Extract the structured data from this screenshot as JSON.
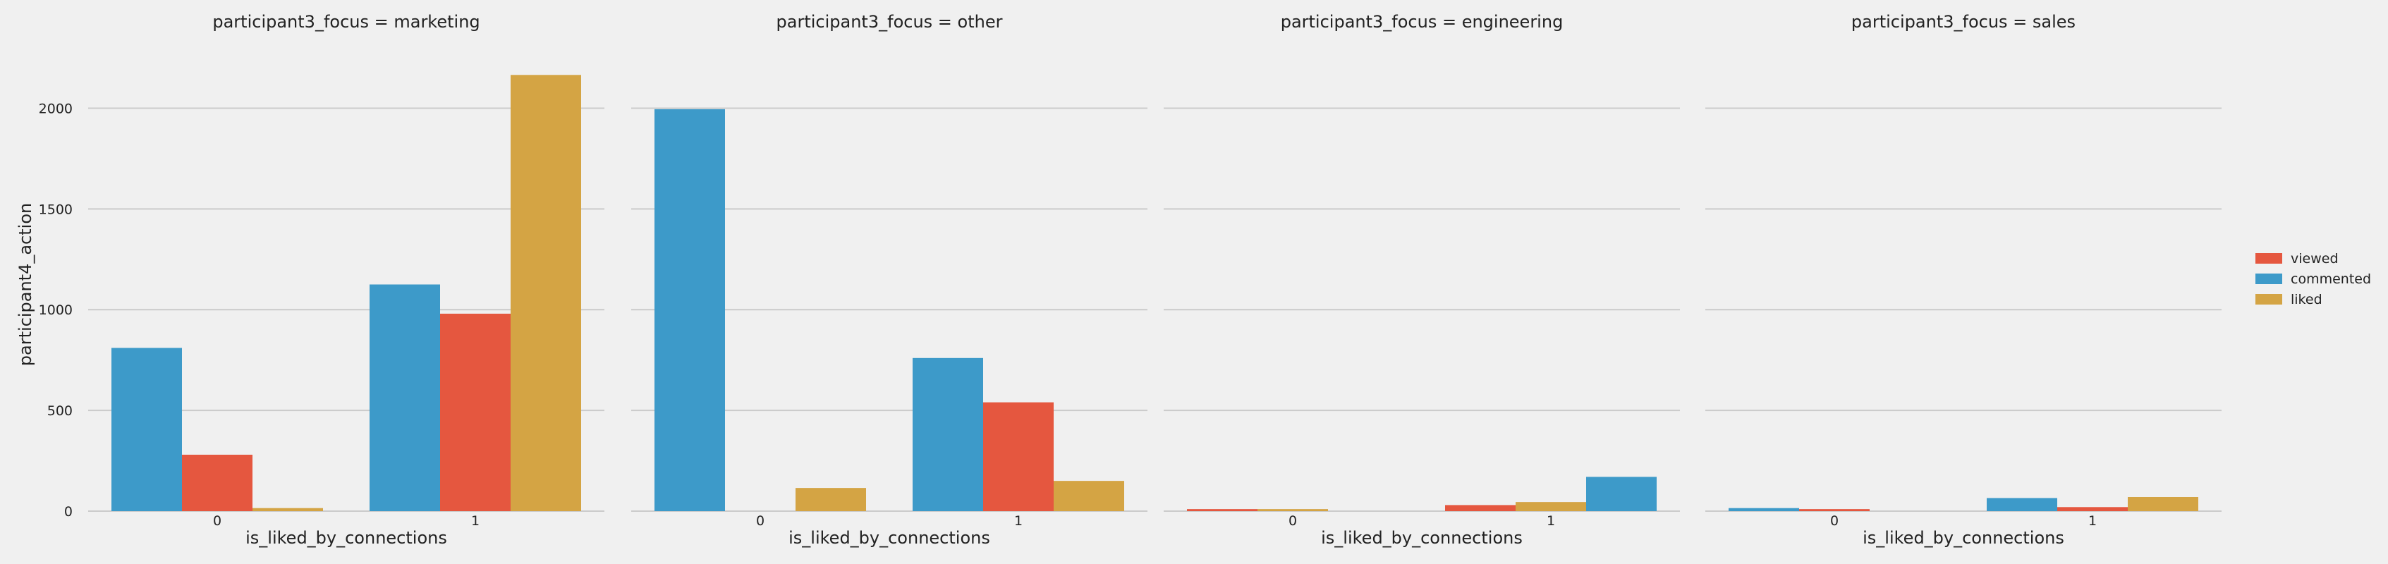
{
  "chart_data": {
    "type": "bar",
    "facet_label": "participant3_focus",
    "xlabel": "is_liked_by_connections",
    "ylabel": "participant4_action",
    "ylim": [
      0,
      2250
    ],
    "yticks": [
      0,
      500,
      1000,
      1500,
      2000
    ],
    "categories": [
      "0",
      "1"
    ],
    "grid": true,
    "legend_position": "right",
    "legend": [
      {
        "name": "viewed",
        "color": "#e5573f"
      },
      {
        "name": "commented",
        "color": "#3d9ac9"
      },
      {
        "name": "liked",
        "color": "#d4a444"
      }
    ],
    "panels": [
      {
        "title": "participant3_focus = marketing",
        "series": [
          {
            "name": "commented",
            "color": "#3d9ac9",
            "values": [
              810,
              1125
            ]
          },
          {
            "name": "viewed",
            "color": "#e5573f",
            "values": [
              280,
              980
            ]
          },
          {
            "name": "liked",
            "color": "#d4a444",
            "values": [
              15,
              2165
            ]
          }
        ]
      },
      {
        "title": "participant3_focus = other",
        "series": [
          {
            "name": "commented",
            "color": "#3d9ac9",
            "values": [
              1995,
              760
            ]
          },
          {
            "name": "viewed",
            "color": "#e5573f",
            "values": [
              0,
              540
            ]
          },
          {
            "name": "liked",
            "color": "#d4a444",
            "values": [
              115,
              150
            ]
          }
        ]
      },
      {
        "title": "participant3_focus = engineering",
        "series": [
          {
            "name": "viewed",
            "color": "#e5573f",
            "values": [
              10,
              30
            ]
          },
          {
            "name": "liked",
            "color": "#d4a444",
            "values": [
              10,
              45
            ]
          },
          {
            "name": "commented",
            "color": "#3d9ac9",
            "values": [
              0,
              170
            ]
          }
        ]
      },
      {
        "title": "participant3_focus = sales",
        "series": [
          {
            "name": "commented",
            "color": "#3d9ac9",
            "values": [
              15,
              65
            ]
          },
          {
            "name": "viewed",
            "color": "#e5573f",
            "values": [
              10,
              20
            ]
          },
          {
            "name": "liked",
            "color": "#d4a444",
            "values": [
              0,
              70
            ]
          }
        ]
      }
    ]
  }
}
